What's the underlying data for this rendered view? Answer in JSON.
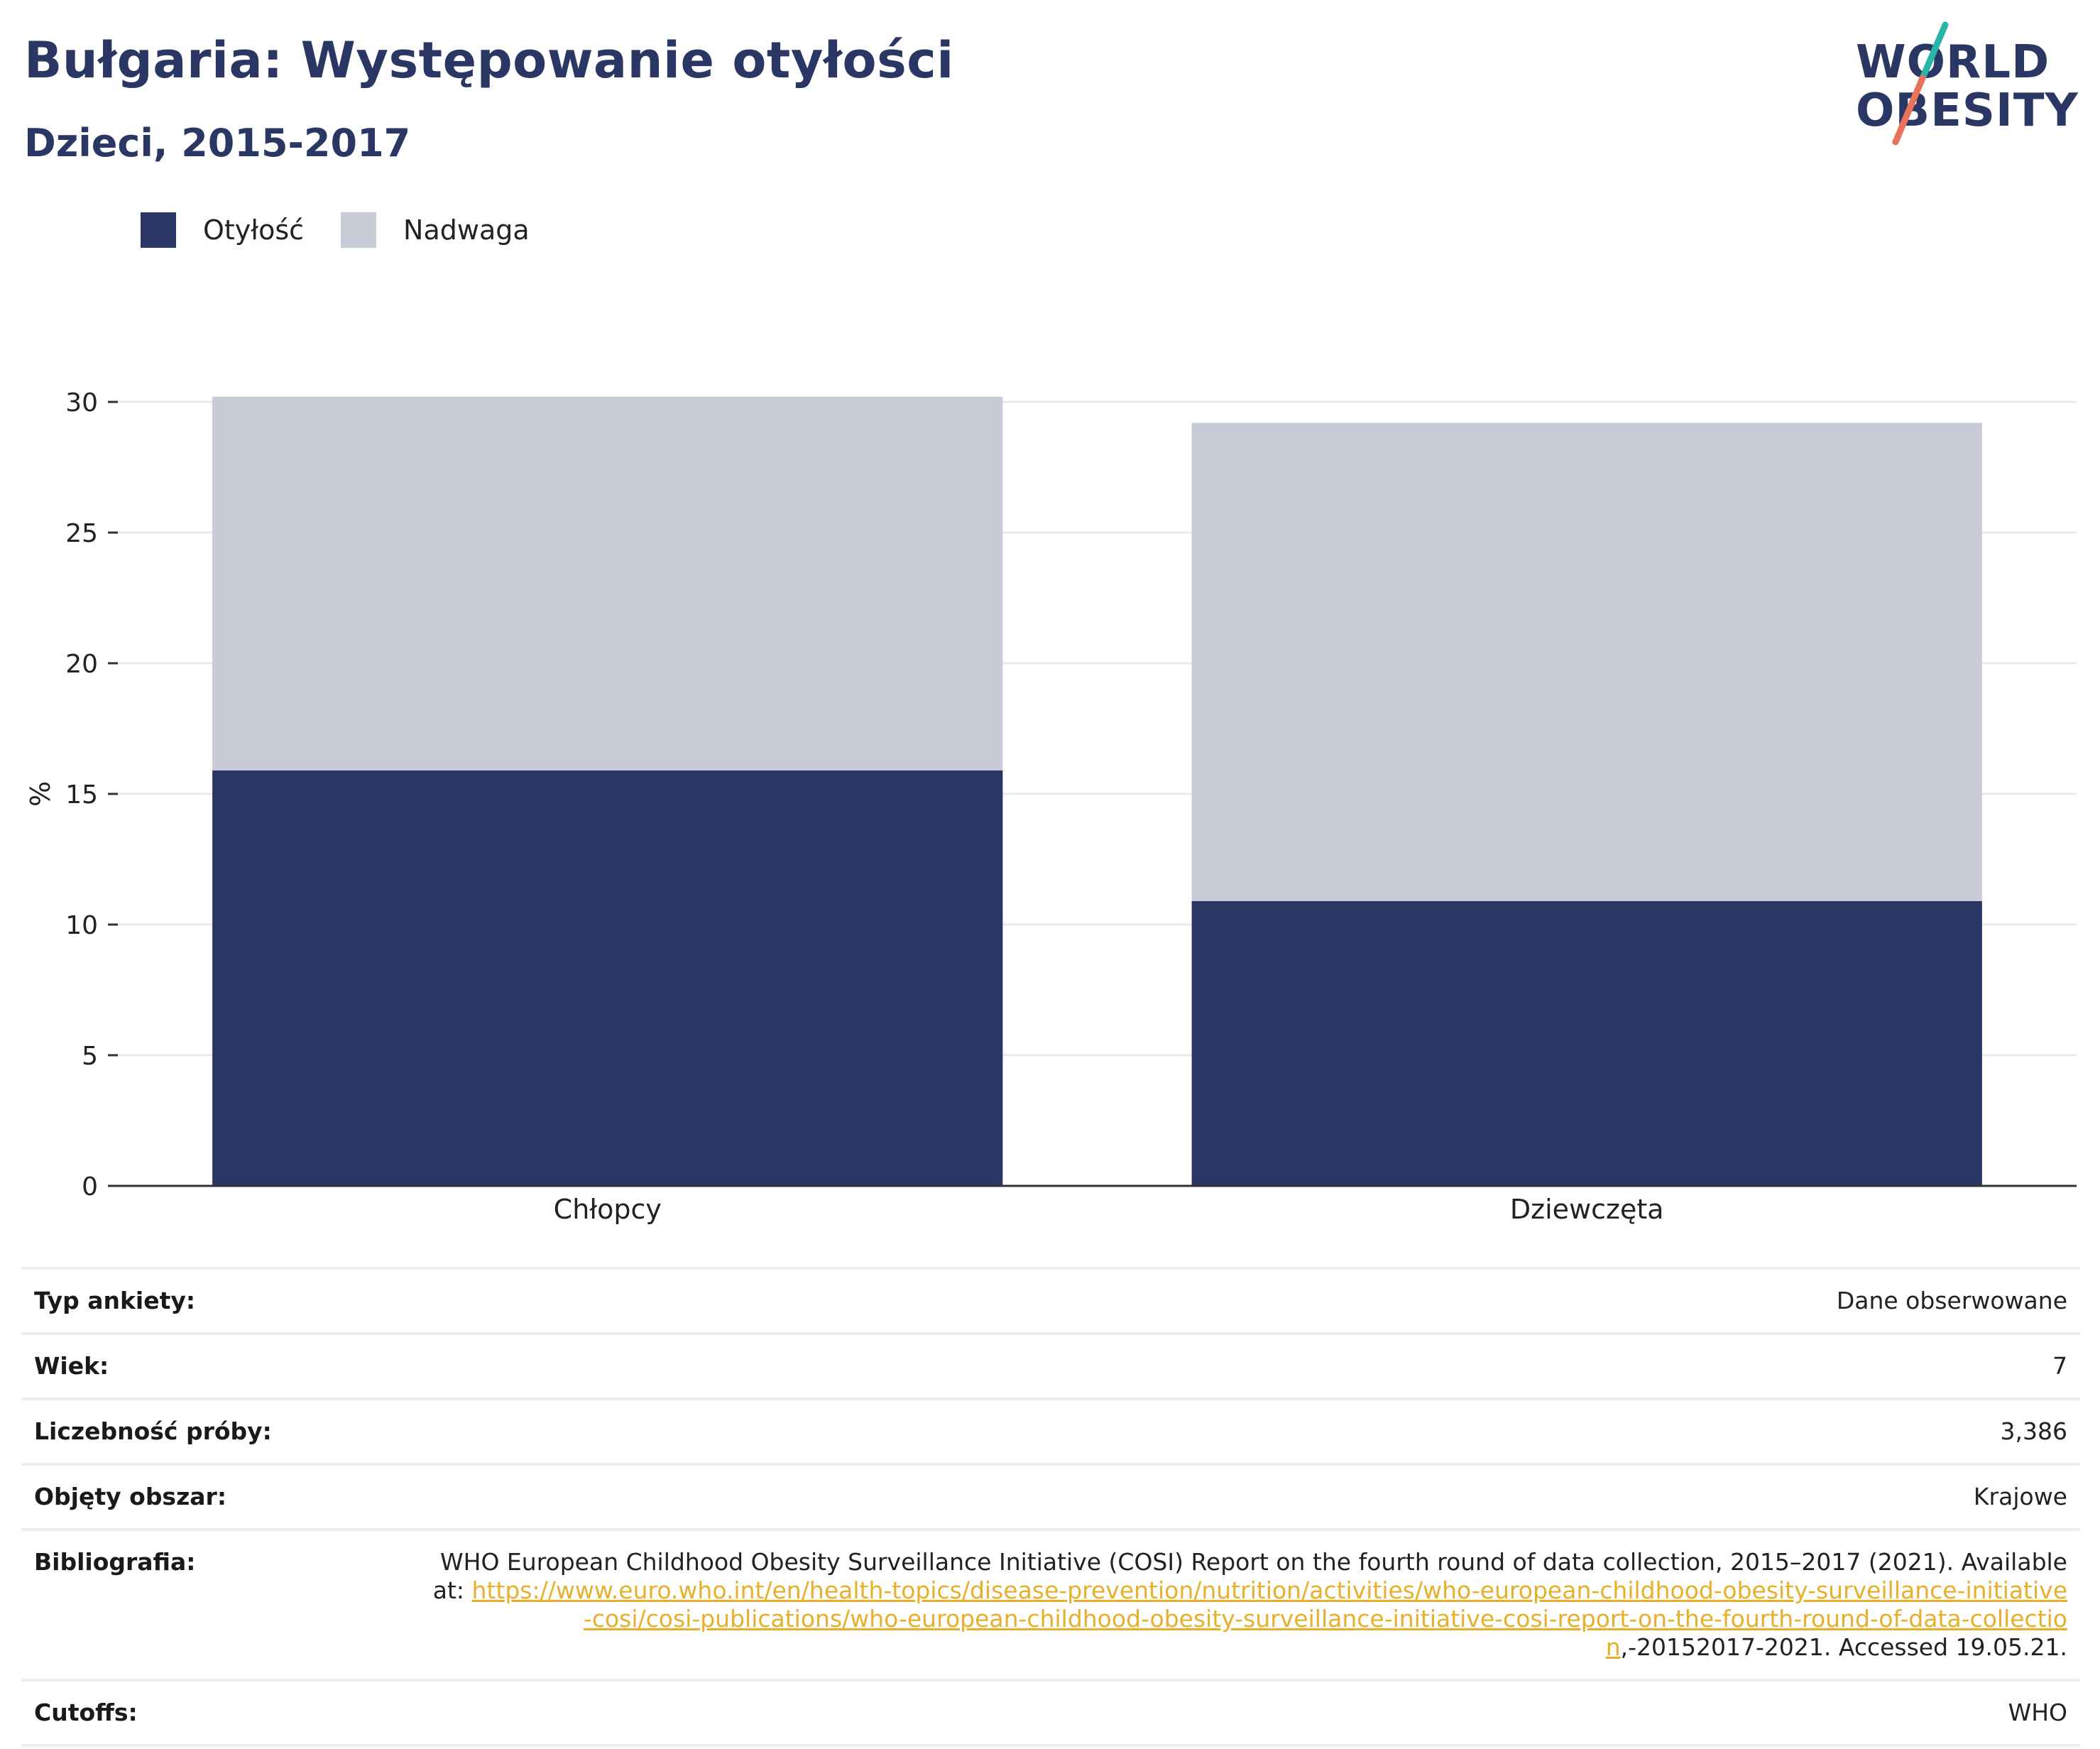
{
  "title": "Bułgaria: Występowanie otyłości",
  "subtitle": "Dzieci, 2015-2017",
  "logo": {
    "line1": "WORLD",
    "line2": "OBESITY",
    "accent_top": "#2bb5a8",
    "accent_bottom": "#e8735a"
  },
  "colors": {
    "obesity": "#2a3663",
    "overweight": "#c9cbd6",
    "brand": "#2a3663",
    "link": "#e8b02a"
  },
  "chart_data": {
    "type": "bar",
    "stacked": true,
    "categories": [
      "Chłopcy",
      "Dziewczęta"
    ],
    "series": [
      {
        "name": "Otyłość",
        "values": [
          15.9,
          10.9
        ]
      },
      {
        "name": "Nadwaga",
        "values": [
          14.3,
          18.3
        ]
      }
    ],
    "ylabel": "%",
    "xlabel": "",
    "ylim": [
      0,
      30
    ],
    "yticks": [
      0,
      5,
      10,
      15,
      20,
      25,
      30
    ],
    "grid": true,
    "legend": "top-left"
  },
  "table": {
    "survey_type": {
      "label": "Typ ankiety:",
      "value": "Dane obserwowane"
    },
    "age": {
      "label": "Wiek:",
      "value": "7"
    },
    "sample_size": {
      "label": "Liczebność próby:",
      "value": "3,386"
    },
    "coverage": {
      "label": "Objęty obszar:",
      "value": "Krajowe"
    },
    "bibliography": {
      "label": "Bibliografia:",
      "text_before": "WHO European Childhood Obesity Surveillance Initiative (COSI) Report on the fourth round of data collection, 2015–2017 (2021). Available at: ",
      "link": "https://www.euro.who.int/en/health-topics/disease-prevention/nutrition/activities/who-european-childhood-obesity-surveillance-initiative-cosi/cosi-publications/who-european-childhood-obesity-surveillance-initiative-cosi-report-on-the-fourth-round-of-data-collection",
      "text_after": ",-20152017-2021. Accessed 19.05.21."
    },
    "cutoffs": {
      "label": "Cutoffs:",
      "value": "WHO"
    }
  }
}
